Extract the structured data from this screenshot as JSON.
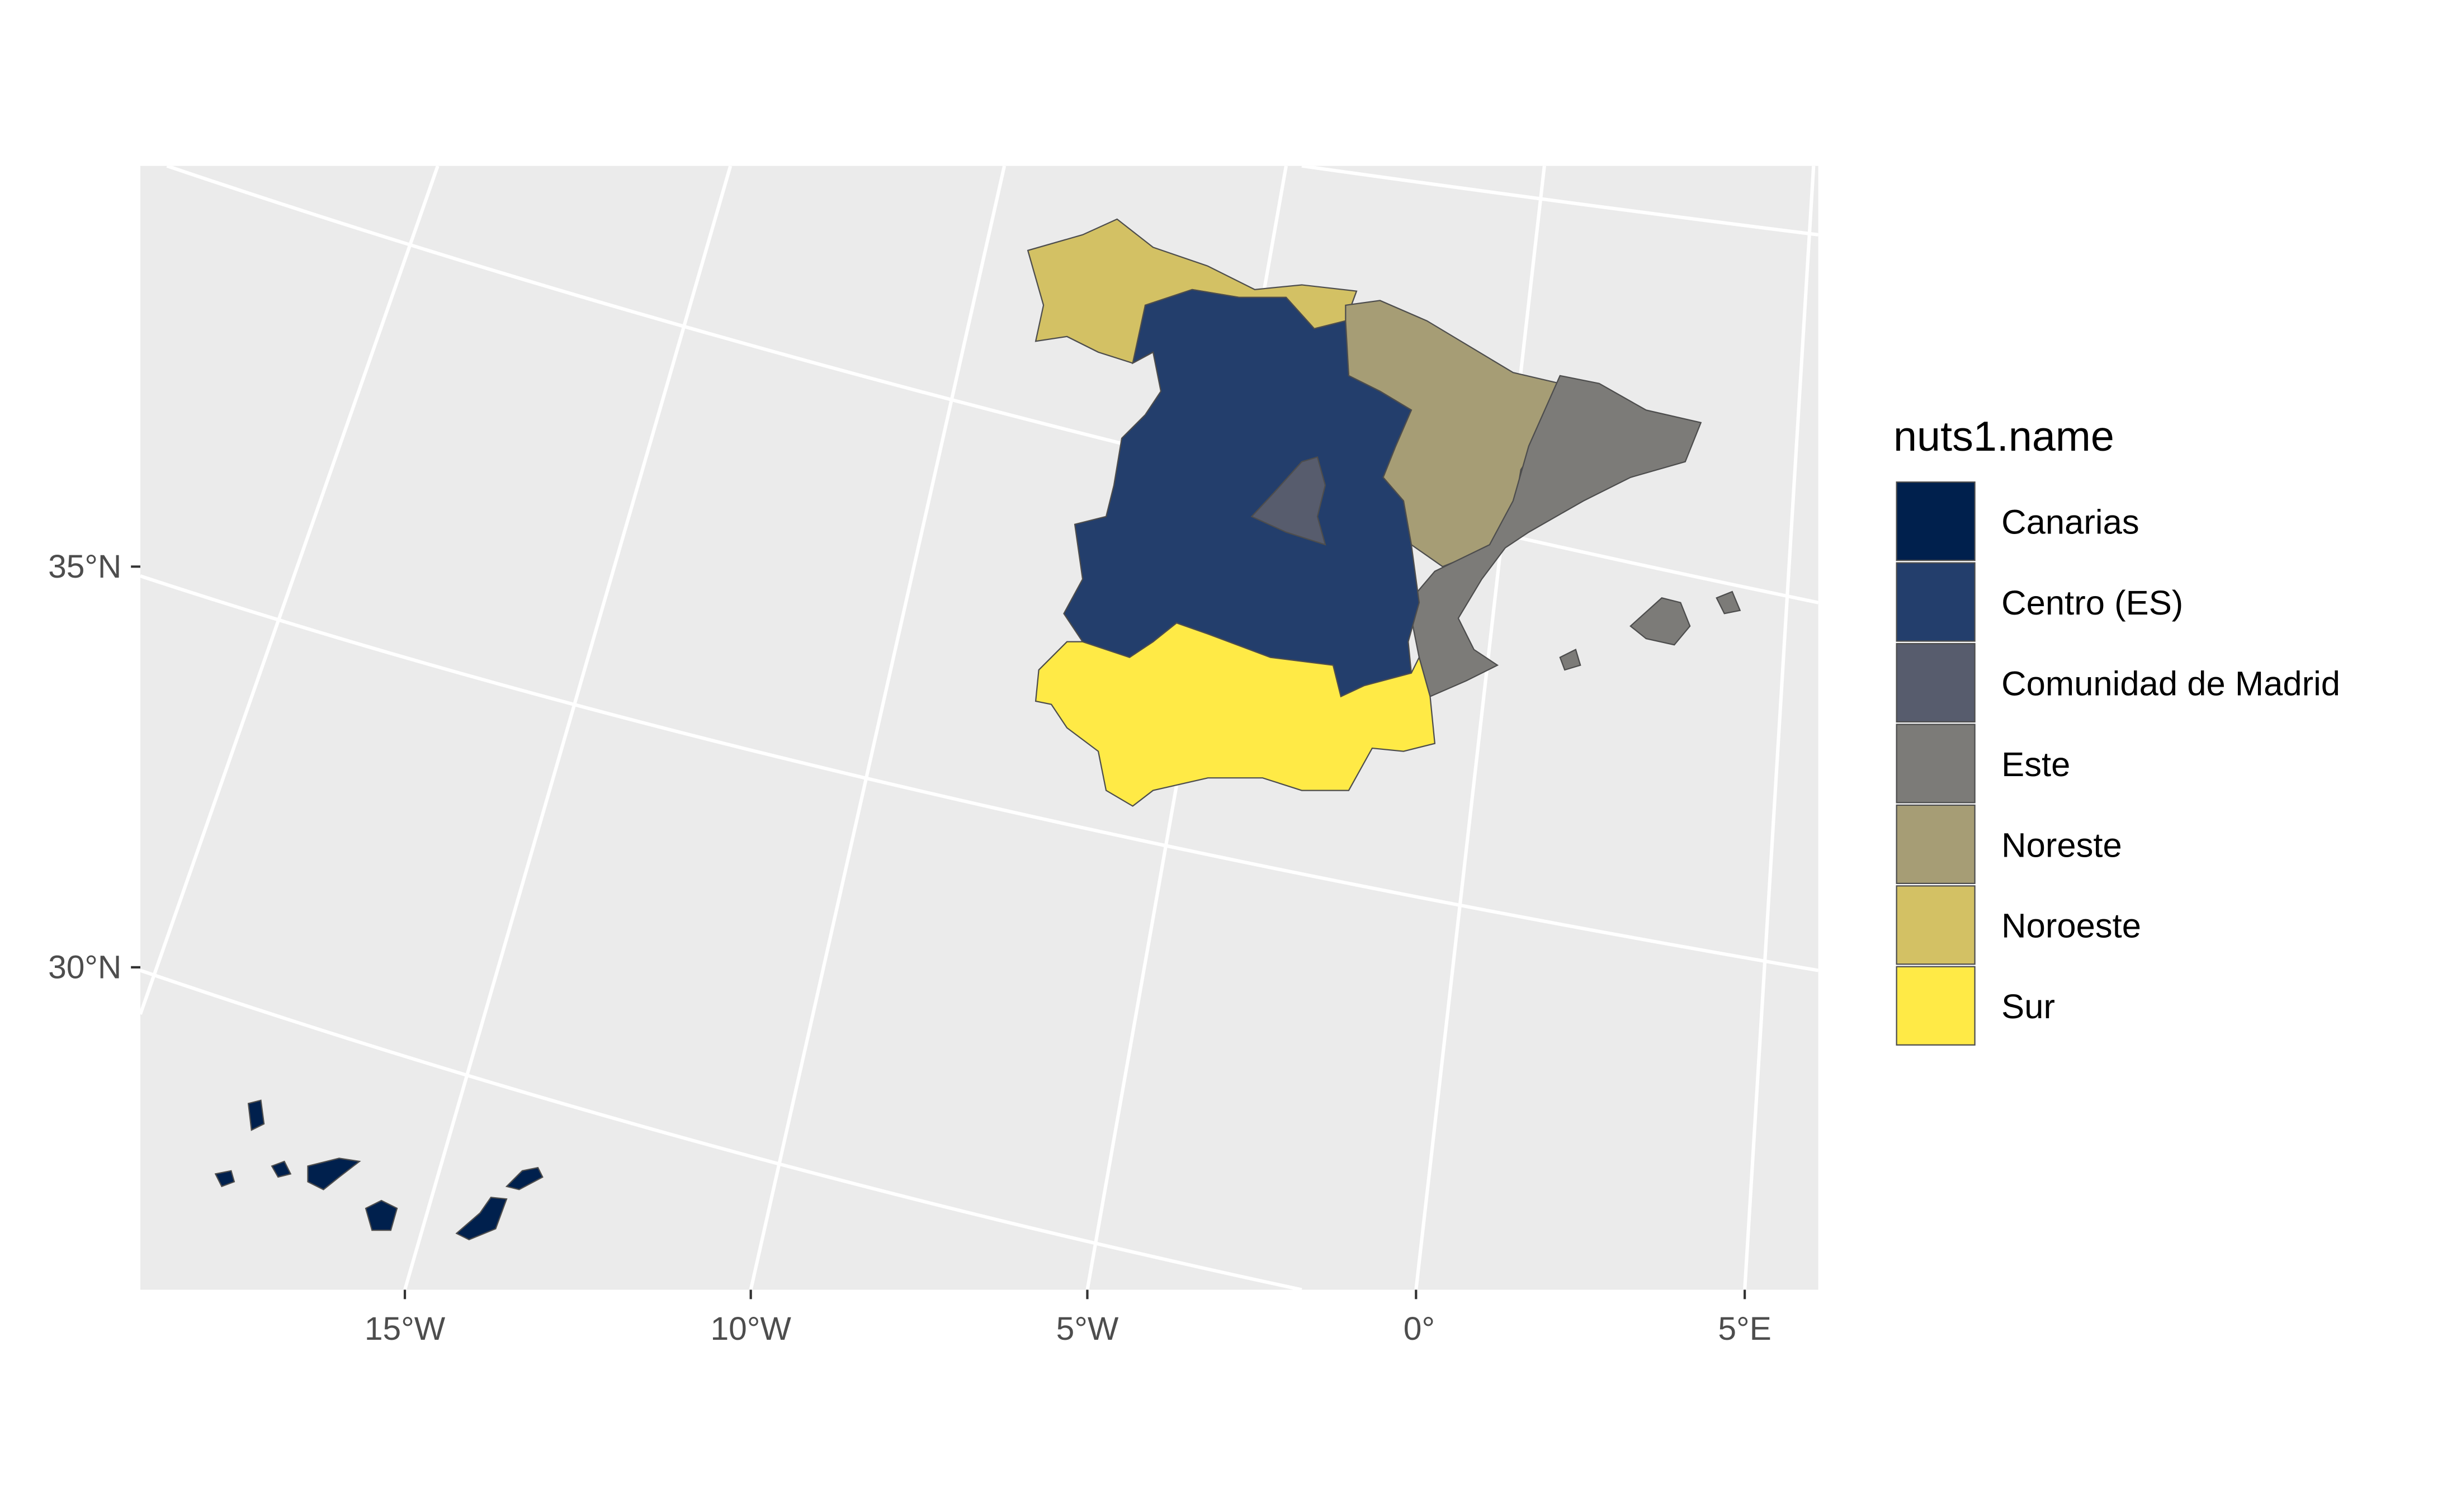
{
  "chart_data": {
    "type": "choropleth-map",
    "legend": {
      "title": "nuts1.name",
      "placement": "right",
      "items": [
        {
          "label": "Canarias",
          "color": "#00204D"
        },
        {
          "label": "Centro (ES)",
          "color": "#233E6C"
        },
        {
          "label": "Comunidad de Madrid",
          "color": "#575C6D"
        },
        {
          "label": "Este",
          "color": "#7C7B78"
        },
        {
          "label": "Noreste",
          "color": "#A69D75"
        },
        {
          "label": "Noroeste",
          "color": "#D3C164"
        },
        {
          "label": "Sur",
          "color": "#FFEA46"
        }
      ]
    },
    "x_ticks": [
      "15°W",
      "10°W",
      "5°W",
      "0°",
      "5°E"
    ],
    "y_ticks": [
      "35°N",
      "30°N"
    ],
    "panel_background": "#EBEBEB",
    "grid": true
  }
}
